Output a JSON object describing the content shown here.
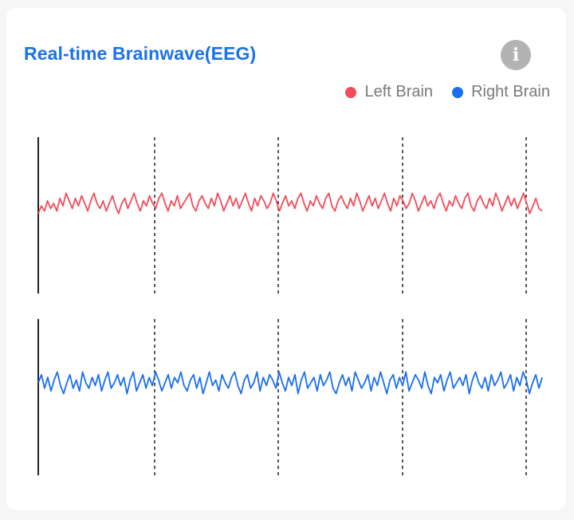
{
  "title": "Real-time Brainwave(EEG)",
  "info_icon": "info-icon",
  "legend": [
    {
      "label": "Left Brain",
      "color": "#f24c5a"
    },
    {
      "label": "Right Brain",
      "color": "#1a6ef0"
    }
  ],
  "chart_data": {
    "type": "line",
    "title": "Real-time Brainwave(EEG)",
    "legend_position": "top-right",
    "grid": "vertical dashed lines",
    "series": [
      {
        "name": "Left Brain",
        "color": "#f24c5a",
        "values": [
          0.1,
          0.4,
          0.2,
          0.6,
          0.3,
          0.5,
          0.2,
          0.7,
          0.4,
          0.9,
          0.6,
          0.3,
          0.7,
          0.4,
          0.8,
          0.5,
          0.2,
          0.6,
          0.9,
          0.5,
          0.3,
          0.6,
          0.2,
          0.5,
          0.8,
          0.4,
          0.1,
          0.5,
          0.7,
          0.3,
          0.6,
          0.9,
          0.5,
          0.2,
          0.6,
          0.4,
          0.8,
          0.5,
          0.3,
          0.7,
          0.9,
          0.5,
          0.2,
          0.6,
          0.4,
          0.8,
          0.3,
          0.5,
          0.7,
          0.9,
          0.4,
          0.2,
          0.6,
          0.8,
          0.5,
          0.3,
          0.7,
          0.4,
          0.9,
          0.6,
          0.2,
          0.5,
          0.8,
          0.4,
          0.7,
          0.3,
          0.6,
          0.9,
          0.5,
          0.2,
          0.7,
          0.4,
          0.8,
          0.6,
          0.3,
          0.5,
          0.9,
          0.6,
          0.2,
          0.5,
          0.8,
          0.4,
          0.6,
          0.3,
          0.7,
          0.9,
          0.5,
          0.2,
          0.6,
          0.4,
          0.8,
          0.5,
          0.3,
          0.7,
          0.9,
          0.4,
          0.2,
          0.6,
          0.8,
          0.5,
          0.3,
          0.7,
          0.4,
          0.9,
          0.6,
          0.2,
          0.5,
          0.8,
          0.4,
          0.7,
          0.3,
          0.6,
          0.9,
          0.5,
          0.2,
          0.7,
          0.4,
          0.8,
          0.6,
          0.3,
          0.5,
          0.9,
          0.6,
          0.2,
          0.5,
          0.8,
          0.4,
          0.6,
          0.3,
          0.7,
          0.9,
          0.5,
          0.2,
          0.6,
          0.4,
          0.8,
          0.5,
          0.3,
          0.7,
          0.9,
          0.4,
          0.2,
          0.6,
          0.8,
          0.5,
          0.3,
          0.7,
          0.4,
          0.9,
          0.6,
          0.2,
          0.5,
          0.8,
          0.4,
          0.7,
          0.3,
          0.6,
          0.9,
          0.5,
          0.1,
          0.4,
          0.7,
          0.3,
          0.2
        ]
      },
      {
        "name": "Right Brain",
        "color": "#1a6ef0",
        "values": [
          0.5,
          0.8,
          0.3,
          0.7,
          0.2,
          0.6,
          0.9,
          0.4,
          0.1,
          0.5,
          0.8,
          0.3,
          0.6,
          0.2,
          0.9,
          0.5,
          0.3,
          0.7,
          0.4,
          0.8,
          0.2,
          0.6,
          0.9,
          0.3,
          0.5,
          0.8,
          0.4,
          0.7,
          0.1,
          0.6,
          0.9,
          0.2,
          0.5,
          0.8,
          0.3,
          0.7,
          0.4,
          0.9,
          0.6,
          0.2,
          0.5,
          0.8,
          0.3,
          0.7,
          0.5,
          0.9,
          0.4,
          0.2,
          0.6,
          0.8,
          0.3,
          0.7,
          0.1,
          0.5,
          0.9,
          0.4,
          0.6,
          0.2,
          0.8,
          0.5,
          0.3,
          0.7,
          0.9,
          0.4,
          0.1,
          0.6,
          0.8,
          0.3,
          0.5,
          0.9,
          0.2,
          0.7,
          0.4,
          0.8,
          0.6,
          0.3,
          0.9,
          0.5,
          0.2,
          0.7,
          0.4,
          0.8,
          0.1,
          0.6,
          0.9,
          0.3,
          0.5,
          0.7,
          0.2,
          0.8,
          0.4,
          0.6,
          0.9,
          0.3,
          0.1,
          0.5,
          0.8,
          0.4,
          0.7,
          0.2,
          0.9,
          0.6,
          0.3,
          0.5,
          0.8,
          0.2,
          0.7,
          0.4,
          0.9,
          0.5,
          0.1,
          0.6,
          0.8,
          0.3,
          0.7,
          0.4,
          0.9,
          0.2,
          0.5,
          0.8,
          0.6,
          0.3,
          0.9,
          0.4,
          0.1,
          0.7,
          0.5,
          0.8,
          0.2,
          0.6,
          0.9,
          0.3,
          0.5,
          0.7,
          0.4,
          0.8,
          0.1,
          0.6,
          0.9,
          0.5,
          0.3,
          0.7,
          0.2,
          0.8,
          0.4,
          0.6,
          0.9,
          0.3,
          0.5,
          0.8,
          0.2,
          0.7,
          0.4,
          0.9,
          0.6,
          0.1,
          0.5,
          0.8,
          0.3,
          0.7
        ]
      }
    ]
  }
}
